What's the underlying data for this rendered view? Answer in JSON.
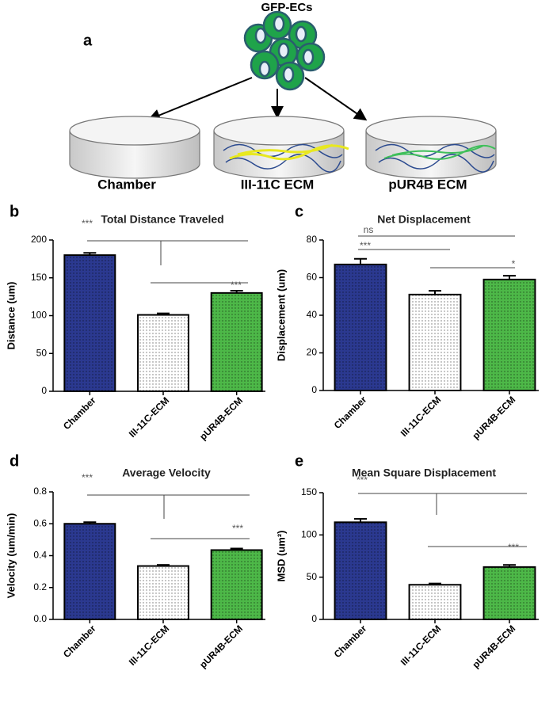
{
  "diagram": {
    "panel": "a",
    "title": "GFP-ECs",
    "labels": [
      "Chamber",
      "III-11C ECM",
      "pUR4B ECM"
    ]
  },
  "chart_data": [
    {
      "type": "bar",
      "panel": "b",
      "title": "Total Distance Traveled",
      "ylabel": "Distance (um)",
      "categories": [
        "Chamber",
        "III-11C-ECM",
        "pUR4B-ECM"
      ],
      "values": [
        180,
        101,
        130
      ],
      "errors": [
        3,
        2,
        3
      ],
      "colors": [
        "#2b3990",
        "#ffffff",
        "#4db848"
      ],
      "ylim": [
        0,
        200
      ],
      "yticks": [
        0,
        50,
        100,
        150,
        200
      ],
      "annotations": [
        "***",
        "***"
      ]
    },
    {
      "type": "bar",
      "panel": "c",
      "title": "Net Displacement",
      "ylabel": "Displacement (um)",
      "categories": [
        "Chamber",
        "III-11C-ECM",
        "pUR4B-ECM"
      ],
      "values": [
        67,
        51,
        59
      ],
      "errors": [
        3,
        2,
        2
      ],
      "colors": [
        "#2b3990",
        "#ffffff",
        "#4db848"
      ],
      "ylim": [
        0,
        80
      ],
      "yticks": [
        0,
        20,
        40,
        60,
        80
      ],
      "annotations": [
        "ns",
        "***",
        "*"
      ]
    },
    {
      "type": "bar",
      "panel": "d",
      "title": "Average Velocity",
      "ylabel": "Velocity (um/min)",
      "categories": [
        "Chamber",
        "III-11C-ECM",
        "pUR4B-ECM"
      ],
      "values": [
        0.6,
        0.335,
        0.435
      ],
      "errors": [
        0.01,
        0.007,
        0.01
      ],
      "colors": [
        "#2b3990",
        "#ffffff",
        "#4db848"
      ],
      "ylim": [
        0,
        0.8
      ],
      "yticks": [
        {
          "value": 0,
          "label": "0.0"
        },
        0.2,
        0.4,
        0.6,
        0.8
      ],
      "annotations": [
        "***",
        "***"
      ]
    },
    {
      "type": "bar",
      "panel": "e",
      "title": "Mean Square Displacement",
      "ylabel": "MSD (um²)",
      "categories": [
        "Chamber",
        "III-11C-ECM",
        "pUR4B-ECM"
      ],
      "values": [
        115,
        41,
        62
      ],
      "errors": [
        4,
        1.5,
        2.5
      ],
      "colors": [
        "#2b3990",
        "#ffffff",
        "#4db848"
      ],
      "ylim": [
        0,
        150
      ],
      "yticks": [
        0,
        50,
        100,
        150
      ],
      "annotations": [
        "***",
        "***"
      ]
    }
  ]
}
